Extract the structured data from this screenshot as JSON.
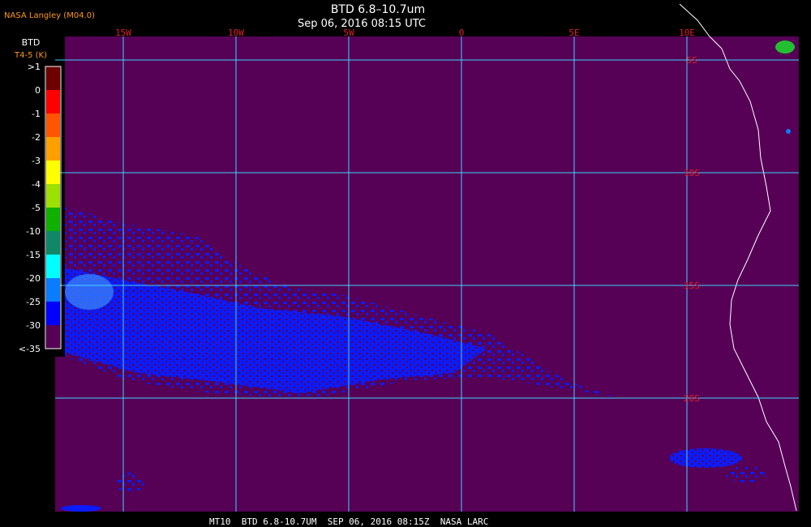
{
  "header": {
    "agency": "NASA Langley (M04.0)",
    "title": "BTD 6.8–10.7um",
    "subtitle": "Sep 06, 2016 08:15 UTC"
  },
  "legend": {
    "title": "BTD",
    "subtitle": "T4-5 (K)",
    "labels": [
      ">1",
      "0",
      "-1",
      "-2",
      "-3",
      "-4",
      "-5",
      "-10",
      "-15",
      "-20",
      "-25",
      "-30",
      "<-35"
    ],
    "colors": [
      "#6e0000",
      "#ff0000",
      "#ff5500",
      "#ffa000",
      "#ffff00",
      "#9ee000",
      "#10b000",
      "#108868",
      "#00ffff",
      "#0a7cff",
      "#0000ff",
      "#560056"
    ]
  },
  "map": {
    "lon_labels": [
      "15W",
      "10W",
      "5W",
      "0",
      "5E",
      "10E"
    ],
    "lat_labels": [
      "5S",
      "10S",
      "15S",
      "20S"
    ]
  },
  "footer": "MT10  BTD 6.8-10.7UM  SEP 06, 2016 08:15Z  NASA LARC"
}
